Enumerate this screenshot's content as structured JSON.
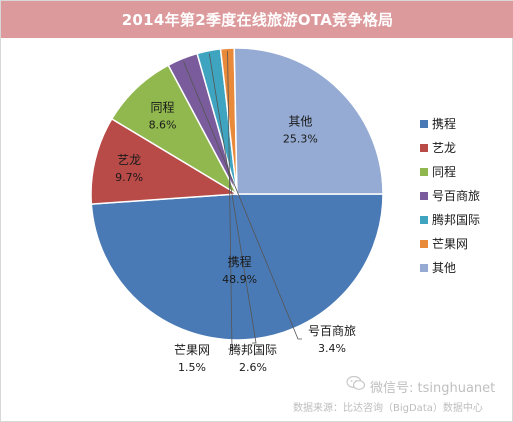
{
  "chart_data": {
    "type": "pie",
    "title": "2014年第2季度在线旅游OTA竞争格局",
    "slices": [
      {
        "name": "携程",
        "value": 48.9,
        "label": "48.9%",
        "color": "#4a7ab5"
      },
      {
        "name": "艺龙",
        "value": 9.7,
        "label": "9.7%",
        "color": "#b84a48"
      },
      {
        "name": "同程",
        "value": 8.6,
        "label": "8.6%",
        "color": "#90b84e"
      },
      {
        "name": "号百商旅",
        "value": 3.4,
        "label": "3.4%",
        "color": "#7a5c9c"
      },
      {
        "name": "腾邦国际",
        "value": 2.6,
        "label": "2.6%",
        "color": "#3fa4bf"
      },
      {
        "name": "芒果网",
        "value": 1.5,
        "label": "1.5%",
        "color": "#e88a3a"
      },
      {
        "name": "其他",
        "value": 25.3,
        "label": "25.3%",
        "color": "#95abd3"
      }
    ],
    "legend_position": "right",
    "start_angle": "right, clockwise"
  },
  "watermark": {
    "text": "微信号: tsinghuanet",
    "icon": "wechat-icon"
  },
  "source": "数据来源：比达咨询（BigData）数据中心"
}
